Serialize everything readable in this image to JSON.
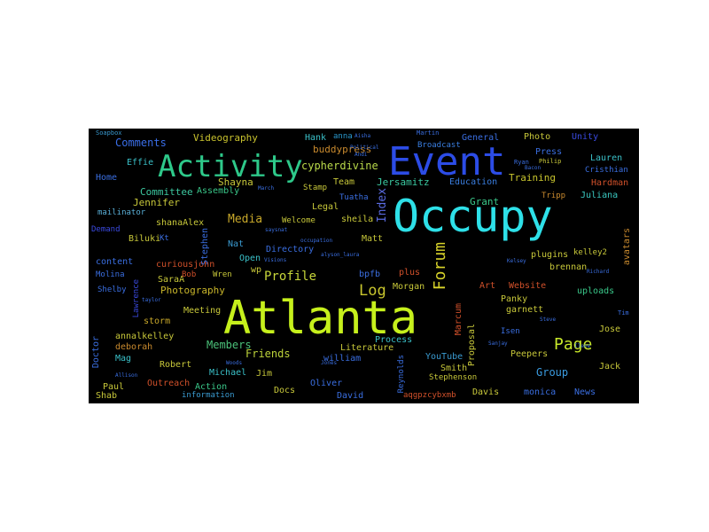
{
  "words": [
    {
      "text": "Atlanta",
      "color": "#c6f01c",
      "rotated": false
    },
    {
      "text": "Occupy",
      "color": "#2ee0e8",
      "rotated": false
    },
    {
      "text": "Event",
      "color": "#2c4ce6",
      "rotated": false
    },
    {
      "text": "Activity",
      "color": "#2ec98a",
      "rotated": false
    },
    {
      "text": "Forum",
      "color": "#d8d32a",
      "rotated": true
    },
    {
      "text": "Page",
      "color": "#c8e82a",
      "rotated": false
    },
    {
      "text": "Log",
      "color": "#c9c62e",
      "rotated": false
    },
    {
      "text": "Profile",
      "color": "#c8d73a",
      "rotated": false
    },
    {
      "text": "Index",
      "color": "#5a6be0",
      "rotated": true
    },
    {
      "text": "Media",
      "color": "#c8a82a",
      "rotated": false
    },
    {
      "text": "Photography",
      "color": "#c9b62a",
      "rotated": false
    },
    {
      "text": "Friends",
      "color": "#bcd23a",
      "rotated": false
    },
    {
      "text": "Members",
      "color": "#4bc27a",
      "rotated": false
    },
    {
      "text": "Group",
      "color": "#3a9be0",
      "rotated": false
    },
    {
      "text": "Comments",
      "color": "#3a6ee8",
      "rotated": false
    },
    {
      "text": "Videography",
      "color": "#c8c22e",
      "rotated": false
    },
    {
      "text": "Committee",
      "color": "#3cc8a0",
      "rotated": false
    },
    {
      "text": "Jennifer",
      "color": "#c8c83a",
      "rotated": false
    },
    {
      "text": "cypherdivine",
      "color": "#b9d94a",
      "rotated": false
    },
    {
      "text": "Shayna",
      "color": "#c8c83a",
      "rotated": false
    },
    {
      "text": "buddypress",
      "color": "#c98a2e",
      "rotated": false
    },
    {
      "text": "Hank",
      "color": "#3ac0c8",
      "rotated": false
    },
    {
      "text": "anna",
      "color": "#2a9ad0",
      "rotated": false
    },
    {
      "text": "Team",
      "color": "#c8c83a",
      "rotated": false
    },
    {
      "text": "Jersamitz",
      "color": "#3ac8a0",
      "rotated": false
    },
    {
      "text": "Education",
      "color": "#3a7ee0",
      "rotated": false
    },
    {
      "text": "Training",
      "color": "#c9c62e",
      "rotated": false
    },
    {
      "text": "Grant",
      "color": "#3ac88a",
      "rotated": false
    },
    {
      "text": "Juliana",
      "color": "#3ac8c0",
      "rotated": false
    },
    {
      "text": "Hardman",
      "color": "#d0502a",
      "rotated": false
    },
    {
      "text": "Lauren",
      "color": "#3ac0c8",
      "rotated": false
    },
    {
      "text": "Cristhian",
      "color": "#3a6ee0",
      "rotated": false
    },
    {
      "text": "General",
      "color": "#3a6ee0",
      "rotated": false
    },
    {
      "text": "Photo",
      "color": "#c8c83a",
      "rotated": false
    },
    {
      "text": "Unity",
      "color": "#3a4ae0",
      "rotated": false
    },
    {
      "text": "Press",
      "color": "#3a6ee0",
      "rotated": false
    },
    {
      "text": "Broadcast",
      "color": "#3a7ee0",
      "rotated": false
    },
    {
      "text": "Home",
      "color": "#3a6ee0",
      "rotated": false
    },
    {
      "text": "Effie",
      "color": "#3ac0c8",
      "rotated": false
    },
    {
      "text": "Assembly",
      "color": "#3ac88a",
      "rotated": false
    },
    {
      "text": "mailinator",
      "color": "#5ab0d8",
      "rotated": false
    },
    {
      "text": "shanaAlex",
      "color": "#c8c83a",
      "rotated": false
    },
    {
      "text": "Demand",
      "color": "#3a4ae0",
      "rotated": false
    },
    {
      "text": "Biluki",
      "color": "#c8c83a",
      "rotated": false
    },
    {
      "text": "content",
      "color": "#3a6ee0",
      "rotated": false
    },
    {
      "text": "curiousjohn",
      "color": "#d0502a",
      "rotated": false
    },
    {
      "text": "Molina",
      "color": "#3a6ee0",
      "rotated": false
    },
    {
      "text": "SaraA",
      "color": "#c8c83a",
      "rotated": false
    },
    {
      "text": "Shelby",
      "color": "#3a6ee0",
      "rotated": false
    },
    {
      "text": "Meeting",
      "color": "#c8c83a",
      "rotated": false
    },
    {
      "text": "storm",
      "color": "#c9a82a",
      "rotated": false
    },
    {
      "text": "annalkelley",
      "color": "#c8c83a",
      "rotated": false
    },
    {
      "text": "deborah",
      "color": "#c98a2e",
      "rotated": false
    },
    {
      "text": "Mag",
      "color": "#3ac0c8",
      "rotated": false
    },
    {
      "text": "Robert",
      "color": "#c8c83a",
      "rotated": false
    },
    {
      "text": "Michael",
      "color": "#3ac0c8",
      "rotated": false
    },
    {
      "text": "Outreach",
      "color": "#d0502a",
      "rotated": false
    },
    {
      "text": "Action",
      "color": "#3ac88a",
      "rotated": false
    },
    {
      "text": "Paul",
      "color": "#c8c83a",
      "rotated": false
    },
    {
      "text": "Shab",
      "color": "#c8c83a",
      "rotated": false
    },
    {
      "text": "information",
      "color": "#3a9ad0",
      "rotated": false
    },
    {
      "text": "Jim",
      "color": "#c8c83a",
      "rotated": false
    },
    {
      "text": "Docs",
      "color": "#c8c83a",
      "rotated": false
    },
    {
      "text": "Oliver",
      "color": "#3a6ee0",
      "rotated": false
    },
    {
      "text": "David",
      "color": "#3a6ee0",
      "rotated": false
    },
    {
      "text": "william",
      "color": "#3a6ee0",
      "rotated": false
    },
    {
      "text": "Literature",
      "color": "#c8c83a",
      "rotated": false
    },
    {
      "text": "Process",
      "color": "#3ac0c8",
      "rotated": false
    },
    {
      "text": "YouTube",
      "color": "#3a9ad0",
      "rotated": false
    },
    {
      "text": "Smith",
      "color": "#c8c83a",
      "rotated": false
    },
    {
      "text": "Stephenson",
      "color": "#c8c83a",
      "rotated": false
    },
    {
      "text": "aqgpzcybxmb",
      "color": "#d0502a",
      "rotated": false
    },
    {
      "text": "Davis",
      "color": "#c8c83a",
      "rotated": false
    },
    {
      "text": "monica",
      "color": "#3a6ee0",
      "rotated": false
    },
    {
      "text": "News",
      "color": "#3a6ee0",
      "rotated": false
    },
    {
      "text": "Jack",
      "color": "#c8c83a",
      "rotated": false
    },
    {
      "text": "Jose",
      "color": "#c8c83a",
      "rotated": false
    },
    {
      "text": "Peepers",
      "color": "#c8c83a",
      "rotated": false
    },
    {
      "text": "Panky",
      "color": "#c8c83a",
      "rotated": false
    },
    {
      "text": "garnett",
      "color": "#c8c83a",
      "rotated": false
    },
    {
      "text": "uploads",
      "color": "#3ac88a",
      "rotated": false
    },
    {
      "text": "Website",
      "color": "#d0502a",
      "rotated": false
    },
    {
      "text": "brennan",
      "color": "#c8c83a",
      "rotated": false
    },
    {
      "text": "plugins",
      "color": "#c8c83a",
      "rotated": false
    },
    {
      "text": "Art",
      "color": "#d0502a",
      "rotated": false
    },
    {
      "text": "Morgan",
      "color": "#c8c83a",
      "rotated": false
    },
    {
      "text": "plus",
      "color": "#d0502a",
      "rotated": false
    },
    {
      "text": "bpfb",
      "color": "#3a6ee0",
      "rotated": false
    },
    {
      "text": "Matt",
      "color": "#c8c83a",
      "rotated": false
    },
    {
      "text": "sheila",
      "color": "#c8c83a",
      "rotated": false
    },
    {
      "text": "Welcome",
      "color": "#c8c83a",
      "rotated": false
    },
    {
      "text": "Legal",
      "color": "#c8c83a",
      "rotated": false
    },
    {
      "text": "Stamp",
      "color": "#c8c83a",
      "rotated": false
    },
    {
      "text": "Tuatha",
      "color": "#3a6ee0",
      "rotated": false
    },
    {
      "text": "Directory",
      "color": "#3a6ee0",
      "rotated": false
    },
    {
      "text": "Open",
      "color": "#3ac0c8",
      "rotated": false
    },
    {
      "text": "Nat",
      "color": "#3a9ad0",
      "rotated": false
    },
    {
      "text": "wp",
      "color": "#c8c83a",
      "rotated": false
    },
    {
      "text": "Wren",
      "color": "#c8c83a",
      "rotated": false
    },
    {
      "text": "Bob",
      "color": "#d0502a",
      "rotated": false
    },
    {
      "text": "Kt",
      "color": "#3a6ee0",
      "rotated": false
    },
    {
      "text": "avatars",
      "color": "#c98a2e",
      "rotated": true
    },
    {
      "text": "kelley2",
      "color": "#c8c83a",
      "rotated": false
    },
    {
      "text": "Stephen",
      "color": "#3a6ee0",
      "rotated": true
    },
    {
      "text": "Lawrence",
      "color": "#3a4ae0",
      "rotated": true
    },
    {
      "text": "Doctor",
      "color": "#3a6ee0",
      "rotated": true
    },
    {
      "text": "Marcum",
      "color": "#d0502a",
      "rotated": true
    },
    {
      "text": "Proposal",
      "color": "#c8c83a",
      "rotated": true
    },
    {
      "text": "Reynolds",
      "color": "#3a6ee0",
      "rotated": true
    },
    {
      "text": "Martin",
      "color": "#3a6ee0",
      "rotated": false
    },
    {
      "text": "Tripp",
      "color": "#c98a2e",
      "rotated": false
    },
    {
      "text": "Isen",
      "color": "#3a6ee0",
      "rotated": false
    },
    {
      "text": "Soapbox",
      "color": "#3a9ad0",
      "rotated": false
    },
    {
      "text": "Philip",
      "color": "#c8c83a",
      "rotated": false
    },
    {
      "text": "Ryan",
      "color": "#3a6ee0",
      "rotated": false
    },
    {
      "text": "Bacon",
      "color": "#3a6ee0",
      "rotated": false
    },
    {
      "text": "March",
      "color": "#3a6ee0",
      "rotated": false
    },
    {
      "text": "saysnat",
      "color": "#3a6ee0",
      "rotated": false
    },
    {
      "text": "occupation",
      "color": "#3a6ee0",
      "rotated": false
    },
    {
      "text": "alyson_laura",
      "color": "#3a6ee0",
      "rotated": false
    },
    {
      "text": "Visions",
      "color": "#3a6ee0",
      "rotated": false
    },
    {
      "text": "Woods",
      "color": "#3a6ee0",
      "rotated": false
    },
    {
      "text": "Jones",
      "color": "#3a6ee0",
      "rotated": false
    },
    {
      "text": "Allison",
      "color": "#3a6ee0",
      "rotated": false
    },
    {
      "text": "taylor",
      "color": "#3a6ee0",
      "rotated": false
    },
    {
      "text": "Tim",
      "color": "#3a6ee0",
      "rotated": false
    },
    {
      "text": "Richard",
      "color": "#3a6ee0",
      "rotated": false
    },
    {
      "text": "Steve",
      "color": "#3a6ee0",
      "rotated": false
    },
    {
      "text": "Sanjay",
      "color": "#3a6ee0",
      "rotated": false
    },
    {
      "text": "Ilene",
      "color": "#3a6ee0",
      "rotated": false
    },
    {
      "text": "Kelsey",
      "color": "#3a6ee0",
      "rotated": false
    },
    {
      "text": "Political",
      "color": "#3a6ee0",
      "rotated": false
    },
    {
      "text": "Andi",
      "color": "#3a6ee0",
      "rotated": false
    },
    {
      "text": "Aisha",
      "color": "#3a6ee0",
      "rotated": false
    }
  ]
}
